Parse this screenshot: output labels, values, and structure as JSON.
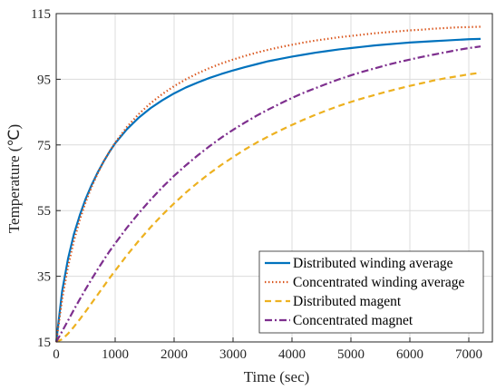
{
  "chart_data": {
    "type": "line",
    "title": "",
    "xlabel": "Time (sec)",
    "ylabel": "Temperature (℃)",
    "xlim": [
      0,
      7400
    ],
    "ylim": [
      15,
      115
    ],
    "xticks": [
      0,
      1000,
      2000,
      3000,
      4000,
      5000,
      6000,
      7000
    ],
    "yticks": [
      15,
      35,
      55,
      75,
      95,
      115
    ],
    "grid": true,
    "legend_position": "bottom-right",
    "x": [
      0,
      100,
      200,
      300,
      400,
      500,
      600,
      700,
      800,
      900,
      1000,
      1200,
      1400,
      1600,
      1800,
      2000,
      2200,
      2400,
      2600,
      2800,
      3000,
      3200,
      3400,
      3600,
      3800,
      4000,
      4200,
      4400,
      4600,
      4800,
      5000,
      5200,
      5400,
      5600,
      5800,
      6000,
      6200,
      6400,
      6600,
      6800,
      7000,
      7200
    ],
    "series": [
      {
        "name": "Distributed winding average",
        "color": "#0072BD",
        "dash": "solid",
        "values": [
          15,
          30.4,
          40.3,
          47.8,
          53.6,
          58.6,
          62.8,
          66.5,
          69.8,
          72.8,
          75.5,
          79.8,
          83.3,
          86.2,
          88.6,
          90.7,
          92.5,
          94.0,
          95.4,
          96.6,
          97.7,
          98.7,
          99.6,
          100.5,
          101.2,
          101.9,
          102.5,
          103.1,
          103.6,
          104.1,
          104.5,
          104.9,
          105.3,
          105.6,
          105.9,
          106.2,
          106.4,
          106.6,
          106.8,
          107.0,
          107.2,
          107.3
        ]
      },
      {
        "name": "Concentrated winding average",
        "color": "#D95319",
        "dash": "dotted",
        "values": [
          15,
          27.9,
          37.9,
          45.8,
          52.2,
          57.6,
          62.2,
          66.2,
          69.8,
          72.9,
          75.7,
          80.5,
          84.4,
          87.7,
          90.5,
          92.9,
          95.0,
          96.8,
          98.4,
          99.8,
          101.0,
          102.1,
          103.1,
          104.0,
          104.8,
          105.5,
          106.2,
          106.8,
          107.3,
          107.8,
          108.2,
          108.6,
          109.0,
          109.3,
          109.6,
          109.9,
          110.1,
          110.4,
          110.6,
          110.8,
          110.9,
          111.0
        ]
      },
      {
        "name": "Distributed magent",
        "color": "#EDB120",
        "dash": "dashed",
        "values": [
          15,
          15.8,
          17.5,
          19.6,
          21.9,
          24.3,
          26.8,
          29.3,
          31.8,
          34.3,
          36.7,
          41.4,
          45.8,
          49.9,
          53.7,
          57.2,
          60.5,
          63.5,
          66.3,
          68.9,
          71.3,
          73.6,
          75.7,
          77.6,
          79.4,
          81.1,
          82.7,
          84.2,
          85.6,
          86.9,
          88.1,
          89.2,
          90.2,
          91.2,
          92.1,
          93.0,
          93.8,
          94.6,
          95.3,
          95.9,
          96.5,
          97.0
        ]
      },
      {
        "name": "Concentrated magnet",
        "color": "#7E2F8E",
        "dash": "dashdot",
        "values": [
          15,
          18.2,
          21.5,
          24.8,
          28.0,
          31.1,
          34.1,
          37.0,
          39.8,
          42.5,
          45.0,
          49.8,
          54.2,
          58.3,
          62.1,
          65.6,
          68.8,
          71.8,
          74.6,
          77.2,
          79.6,
          81.8,
          83.9,
          85.8,
          87.6,
          89.3,
          90.9,
          92.3,
          93.7,
          95.0,
          96.2,
          97.3,
          98.3,
          99.3,
          100.2,
          101.0,
          101.8,
          102.5,
          103.2,
          103.9,
          104.5,
          105.0
        ]
      }
    ]
  }
}
